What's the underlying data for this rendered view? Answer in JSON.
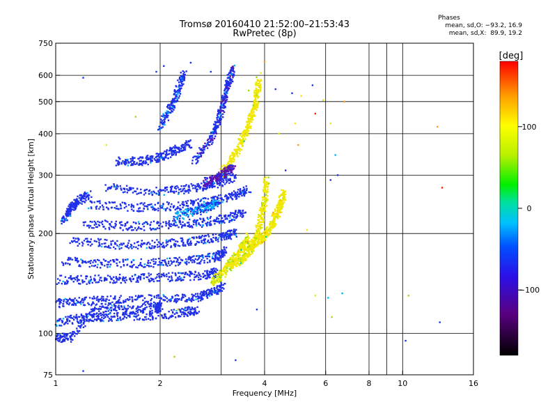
{
  "header": {
    "title": "Tromsø 20160410 21:52:00–21:53:43",
    "subtitle": "RwPretec (8p)"
  },
  "info": {
    "heading": "Phases",
    "line1": "mean, sd,O: −93.2, 16.9",
    "line2": "mean, sd,X:  89.9, 19.2"
  },
  "chart_data": {
    "type": "scatter",
    "xlabel": "Frequency [MHz]",
    "ylabel": "Stationary phase Virtual Height [km]",
    "x_scale": "log",
    "y_scale": "log",
    "xlim": [
      1,
      16
    ],
    "ylim": [
      75,
      750
    ],
    "x_ticks": [
      1,
      2,
      4,
      6,
      8,
      10,
      16
    ],
    "x_tick_labels": [
      "1",
      "2",
      "4",
      "6",
      "8",
      "10",
      "16"
    ],
    "x_grid": [
      2,
      3,
      4,
      6,
      8,
      9,
      10
    ],
    "y_ticks": [
      75,
      100,
      200,
      300,
      400,
      500,
      600,
      750
    ],
    "y_tick_labels": [
      "75",
      "100",
      "200",
      "300",
      "400",
      "500",
      "600",
      "750"
    ],
    "y_grid": [
      100,
      200,
      300,
      400,
      500,
      600
    ],
    "grid": true,
    "colorbar": {
      "label": "[deg]",
      "range": [
        -180,
        180
      ],
      "ticks": [
        100,
        0,
        -100
      ],
      "tick_labels": [
        "100",
        "0",
        "−100"
      ]
    },
    "traces": [
      {
        "f": [
          1.0,
          1.1,
          1.3,
          1.6,
          1.95,
          2.0
        ],
        "h": [
          97,
          97,
          118,
          118,
          120,
          120
        ],
        "phase": -105
      },
      {
        "f": [
          1.0,
          1.2,
          1.4,
          1.8,
          2.3,
          2.55
        ],
        "h": [
          108,
          111,
          112,
          113,
          115,
          118
        ],
        "phase": -110
      },
      {
        "f": [
          1.0,
          1.2,
          1.5,
          2.0,
          2.5,
          2.8,
          3.05
        ],
        "h": [
          123,
          125,
          126,
          127,
          128,
          132,
          140
        ],
        "phase": -105
      },
      {
        "f": [
          1.0,
          1.3,
          1.7,
          2.2,
          2.7,
          2.95
        ],
        "h": [
          145,
          145,
          147,
          148,
          150,
          153
        ],
        "phase": -112
      },
      {
        "f": [
          1.05,
          1.4,
          1.9,
          2.4,
          2.9,
          3.1
        ],
        "h": [
          165,
          162,
          163,
          165,
          170,
          178
        ],
        "phase": -100
      },
      {
        "f": [
          1.1,
          1.5,
          2.0,
          2.5,
          3.0,
          3.3
        ],
        "h": [
          190,
          185,
          186,
          190,
          195,
          200
        ],
        "phase": -108
      },
      {
        "f": [
          1.2,
          1.6,
          2.1,
          2.6,
          3.1,
          3.5
        ],
        "h": [
          215,
          210,
          212,
          215,
          222,
          232
        ],
        "phase": -104
      },
      {
        "f": [
          1.25,
          1.7,
          2.2,
          2.7,
          3.2,
          3.6
        ],
        "h": [
          245,
          240,
          242,
          248,
          258,
          270
        ],
        "phase": -112
      },
      {
        "f": [
          1.4,
          1.9,
          2.4,
          2.85,
          3.3
        ],
        "h": [
          275,
          268,
          272,
          282,
          295
        ],
        "phase": -100
      },
      {
        "f": [
          2.5,
          2.8,
          2.95,
          3.05,
          3.15,
          3.25
        ],
        "h": [
          330,
          380,
          440,
          500,
          570,
          630
        ],
        "phase": -118
      },
      {
        "f": [
          2.0,
          2.15,
          2.25,
          2.35
        ],
        "h": [
          420,
          480,
          540,
          610
        ],
        "phase": -95
      },
      {
        "f": [
          1.5,
          1.75,
          2.0,
          2.2,
          2.45
        ],
        "h": [
          330,
          330,
          340,
          355,
          375
        ],
        "phase": -103
      },
      {
        "f": [
          2.2,
          2.5,
          2.75,
          2.95
        ],
        "h": [
          225,
          232,
          240,
          250
        ],
        "phase": -80
      },
      {
        "f": [
          3.0,
          3.2,
          3.4,
          3.55,
          3.7,
          3.8,
          3.85
        ],
        "h": [
          300,
          330,
          370,
          410,
          460,
          520,
          580
        ],
        "phase": 95
      },
      {
        "f": [
          2.8,
          3.0,
          3.2,
          3.4,
          3.6
        ],
        "h": [
          142,
          150,
          162,
          178,
          195
        ],
        "phase": 85
      },
      {
        "f": [
          3.4,
          3.7,
          3.95,
          4.15,
          4.3,
          4.45,
          4.55
        ],
        "h": [
          180,
          185,
          195,
          205,
          225,
          245,
          265
        ],
        "phase": 100
      },
      {
        "f": [
          3.2,
          3.4,
          3.6,
          3.8,
          3.9,
          4.0,
          4.05
        ],
        "h": [
          160,
          165,
          175,
          195,
          220,
          250,
          290
        ],
        "phase": 92
      },
      {
        "f": [
          2.7,
          2.9,
          3.1,
          3.25
        ],
        "h": [
          285,
          292,
          305,
          320
        ],
        "phase": -140
      },
      {
        "f": [
          1.05,
          1.1,
          1.15,
          1.25
        ],
        "h": [
          220,
          235,
          250,
          262
        ],
        "phase": -100
      }
    ],
    "scatter": [
      {
        "f": 1.2,
        "h": 590,
        "phase": -90
      },
      {
        "f": 1.95,
        "h": 615,
        "phase": -100
      },
      {
        "f": 2.05,
        "h": 640,
        "phase": -95
      },
      {
        "f": 2.45,
        "h": 655,
        "phase": -105
      },
      {
        "f": 2.8,
        "h": 615,
        "phase": -110
      },
      {
        "f": 3.2,
        "h": 570,
        "phase": -95
      },
      {
        "f": 3.6,
        "h": 540,
        "phase": 40
      },
      {
        "f": 3.9,
        "h": 610,
        "phase": 100
      },
      {
        "f": 4.0,
        "h": 660,
        "phase": 140
      },
      {
        "f": 4.3,
        "h": 545,
        "phase": -100
      },
      {
        "f": 4.8,
        "h": 530,
        "phase": -110
      },
      {
        "f": 5.1,
        "h": 520,
        "phase": 90
      },
      {
        "f": 5.5,
        "h": 560,
        "phase": -105
      },
      {
        "f": 5.9,
        "h": 505,
        "phase": 80
      },
      {
        "f": 6.2,
        "h": 430,
        "phase": 100
      },
      {
        "f": 6.8,
        "h": 500,
        "phase": 130
      },
      {
        "f": 5.6,
        "h": 460,
        "phase": 150
      },
      {
        "f": 4.9,
        "h": 430,
        "phase": 80
      },
      {
        "f": 4.4,
        "h": 400,
        "phase": 100
      },
      {
        "f": 6.4,
        "h": 345,
        "phase": -40
      },
      {
        "f": 6.5,
        "h": 300,
        "phase": -110
      },
      {
        "f": 6.2,
        "h": 290,
        "phase": -100
      },
      {
        "f": 5.0,
        "h": 370,
        "phase": 120
      },
      {
        "f": 5.3,
        "h": 205,
        "phase": 95
      },
      {
        "f": 5.6,
        "h": 130,
        "phase": 110
      },
      {
        "f": 6.7,
        "h": 132,
        "phase": -50
      },
      {
        "f": 6.1,
        "h": 128,
        "phase": -30
      },
      {
        "f": 6.25,
        "h": 112,
        "phase": 60
      },
      {
        "f": 10.4,
        "h": 130,
        "phase": 60
      },
      {
        "f": 10.2,
        "h": 95,
        "phase": -110
      },
      {
        "f": 12.8,
        "h": 108,
        "phase": -100
      },
      {
        "f": 12.6,
        "h": 420,
        "phase": 140
      },
      {
        "f": 13.0,
        "h": 275,
        "phase": 150
      },
      {
        "f": 3.3,
        "h": 83,
        "phase": -100
      },
      {
        "f": 2.2,
        "h": 85,
        "phase": 60
      },
      {
        "f": 1.2,
        "h": 77,
        "phase": -100
      },
      {
        "f": 1.1,
        "h": 98,
        "phase": -90
      },
      {
        "f": 1.4,
        "h": 370,
        "phase": 90
      },
      {
        "f": 1.7,
        "h": 450,
        "phase": 60
      },
      {
        "f": 2.25,
        "h": 118,
        "phase": 85
      },
      {
        "f": 3.8,
        "h": 118,
        "phase": -100
      },
      {
        "f": 4.6,
        "h": 310,
        "phase": -100
      }
    ]
  }
}
